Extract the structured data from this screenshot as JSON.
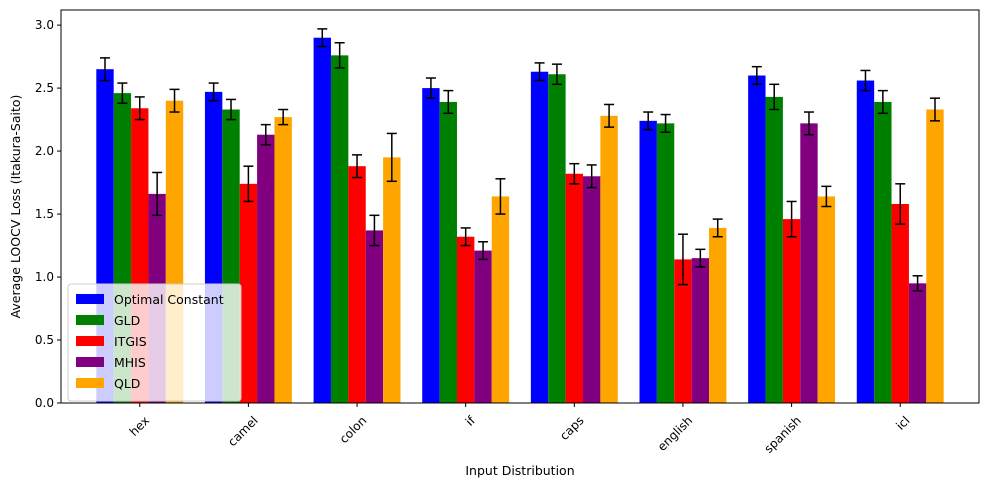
{
  "chart_data": {
    "type": "bar",
    "title": "",
    "xlabel": "Input Distribution",
    "ylabel": "Average LOOCV Loss (Itakura-Saito)",
    "ylim": [
      0,
      3.12
    ],
    "yticks": [
      0.0,
      0.5,
      1.0,
      1.5,
      2.0,
      2.5,
      3.0
    ],
    "ytick_labels": [
      "0.0",
      "0.5",
      "1.0",
      "1.5",
      "2.0",
      "2.5",
      "3.0"
    ],
    "grid": false,
    "legend_position": "lower-left",
    "error_bars": true,
    "categories": [
      "hex",
      "camel",
      "colon",
      "if",
      "caps",
      "english",
      "spanish",
      "icl"
    ],
    "series": [
      {
        "name": "Optimal Constant",
        "color": "#0000ff",
        "values": [
          2.65,
          2.47,
          2.9,
          2.5,
          2.63,
          2.24,
          2.6,
          2.56
        ],
        "errors": [
          0.09,
          0.07,
          0.07,
          0.08,
          0.07,
          0.07,
          0.07,
          0.08
        ]
      },
      {
        "name": "GLD",
        "color": "#008000",
        "values": [
          2.46,
          2.33,
          2.76,
          2.39,
          2.61,
          2.22,
          2.43,
          2.39
        ],
        "errors": [
          0.08,
          0.08,
          0.1,
          0.09,
          0.08,
          0.07,
          0.1,
          0.09
        ]
      },
      {
        "name": "ITGIS",
        "color": "#ff0000",
        "values": [
          2.34,
          1.74,
          1.88,
          1.32,
          1.82,
          1.14,
          1.46,
          1.58
        ],
        "errors": [
          0.09,
          0.14,
          0.09,
          0.07,
          0.08,
          0.2,
          0.14,
          0.16
        ]
      },
      {
        "name": "MHIS",
        "color": "#800080",
        "values": [
          1.66,
          2.13,
          1.37,
          1.21,
          1.8,
          1.15,
          2.22,
          0.95
        ],
        "errors": [
          0.17,
          0.08,
          0.12,
          0.07,
          0.09,
          0.07,
          0.09,
          0.06
        ]
      },
      {
        "name": "QLD",
        "color": "#ffa500",
        "values": [
          2.4,
          2.27,
          1.95,
          1.64,
          2.28,
          1.39,
          1.64,
          2.33
        ],
        "errors": [
          0.09,
          0.06,
          0.19,
          0.14,
          0.09,
          0.07,
          0.08,
          0.09
        ]
      }
    ]
  }
}
